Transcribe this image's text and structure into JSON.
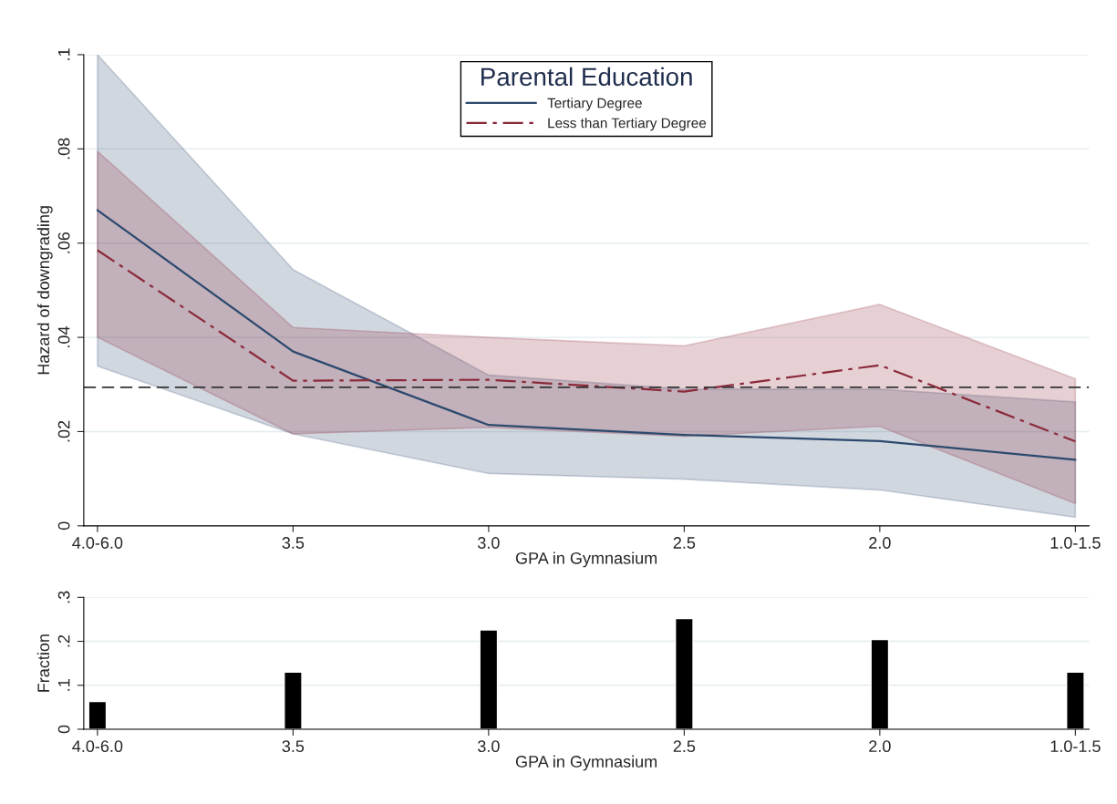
{
  "chart_data": [
    {
      "type": "line",
      "xlabel": "GPA in Gymnasium",
      "ylabel": "Hazard of downgrading",
      "legend_title": "Parental Education",
      "legend": "top",
      "categories": [
        "4.0-6.0",
        "3.5",
        "3.0",
        "2.5",
        "2.0",
        "1.0-1.5"
      ],
      "series": [
        {
          "name": "Tertiary Degree",
          "color": "#2c4a6e",
          "line_style": "solid",
          "values": [
            0.067,
            0.037,
            0.0214,
            0.0193,
            0.018,
            0.014
          ],
          "lower": [
            0.0339,
            0.0195,
            0.0111,
            0.0099,
            0.0076,
            0.0018
          ],
          "upper": [
            0.1,
            0.0544,
            0.032,
            0.029,
            0.029,
            0.0263
          ]
        },
        {
          "name": "Less than Tertiary Degree",
          "color": "#8b2a3a",
          "line_style": "dashdot",
          "values": [
            0.0585,
            0.0308,
            0.031,
            0.0285,
            0.0341,
            0.0179
          ],
          "lower": [
            0.04,
            0.0195,
            0.0209,
            0.019,
            0.0211,
            0.0047
          ],
          "upper": [
            0.0795,
            0.0421,
            0.04,
            0.0382,
            0.047,
            0.0312
          ]
        }
      ],
      "ref_lines": [
        {
          "axis": "y",
          "value": 0.0294,
          "color": "#333333",
          "line_style": "dashed"
        }
      ],
      "ylim": [
        0,
        0.1
      ],
      "yticks": [
        {
          "value": 0,
          "label": "0"
        },
        {
          "value": 0.02,
          "label": ".02"
        },
        {
          "value": 0.04,
          "label": ".04"
        },
        {
          "value": 0.06,
          "label": ".06"
        },
        {
          "value": 0.08,
          "label": ".08"
        },
        {
          "value": 0.1,
          "label": ".1"
        }
      ],
      "grid": "y"
    },
    {
      "type": "bar",
      "xlabel": "GPA in Gymnasium",
      "ylabel": "Fraction",
      "categories": [
        "4.0-6.0",
        "3.5",
        "3.0",
        "2.5",
        "2.0",
        "1.0-1.5"
      ],
      "values": [
        0.063,
        0.13,
        0.226,
        0.252,
        0.204,
        0.13
      ],
      "color": "#000000",
      "ylim": [
        0,
        0.3
      ],
      "yticks": [
        {
          "value": 0,
          "label": "0"
        },
        {
          "value": 0.1,
          "label": ".1"
        },
        {
          "value": 0.2,
          "label": ".2"
        },
        {
          "value": 0.3,
          "label": ".3"
        }
      ],
      "grid": "y"
    }
  ]
}
